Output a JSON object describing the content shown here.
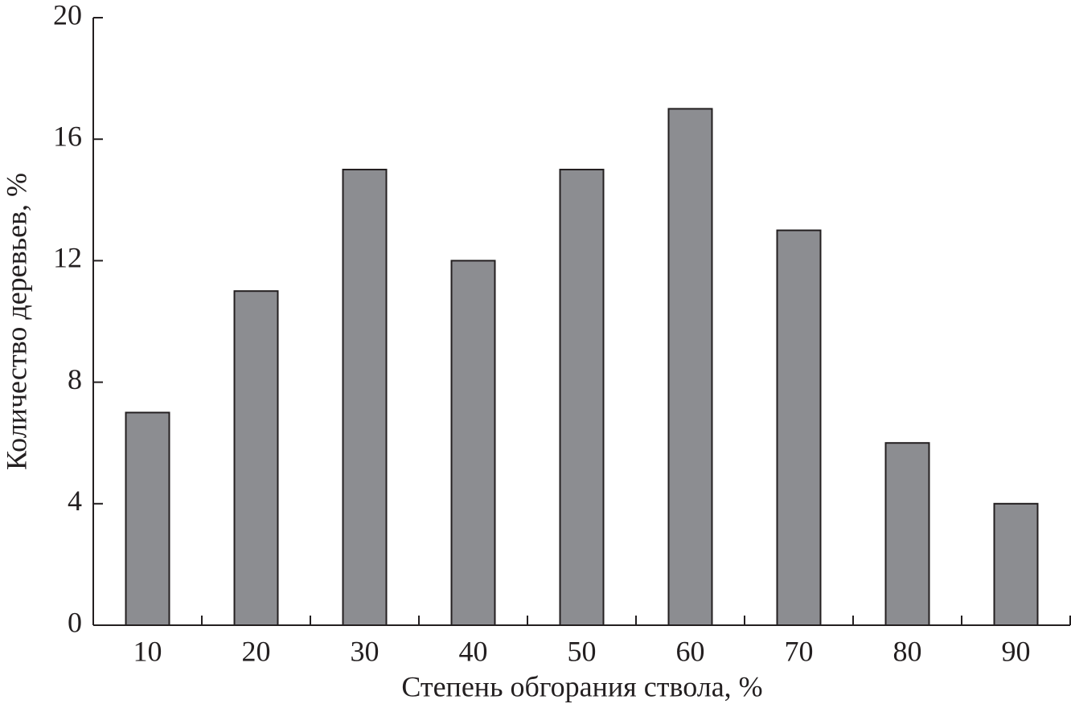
{
  "chart_data": {
    "type": "bar",
    "x_label": "Степень обгорания ствола, %",
    "y_label": "Количество деревьев, %",
    "categories": [
      "10",
      "20",
      "30",
      "40",
      "50",
      "60",
      "70",
      "80",
      "90"
    ],
    "values": [
      7,
      11,
      15,
      12,
      15,
      17,
      13,
      6,
      4
    ],
    "color": "#8c8d91",
    "ylim": [
      0,
      20
    ],
    "yticks": [
      0,
      4,
      8,
      12,
      16,
      20
    ],
    "grid": false
  }
}
